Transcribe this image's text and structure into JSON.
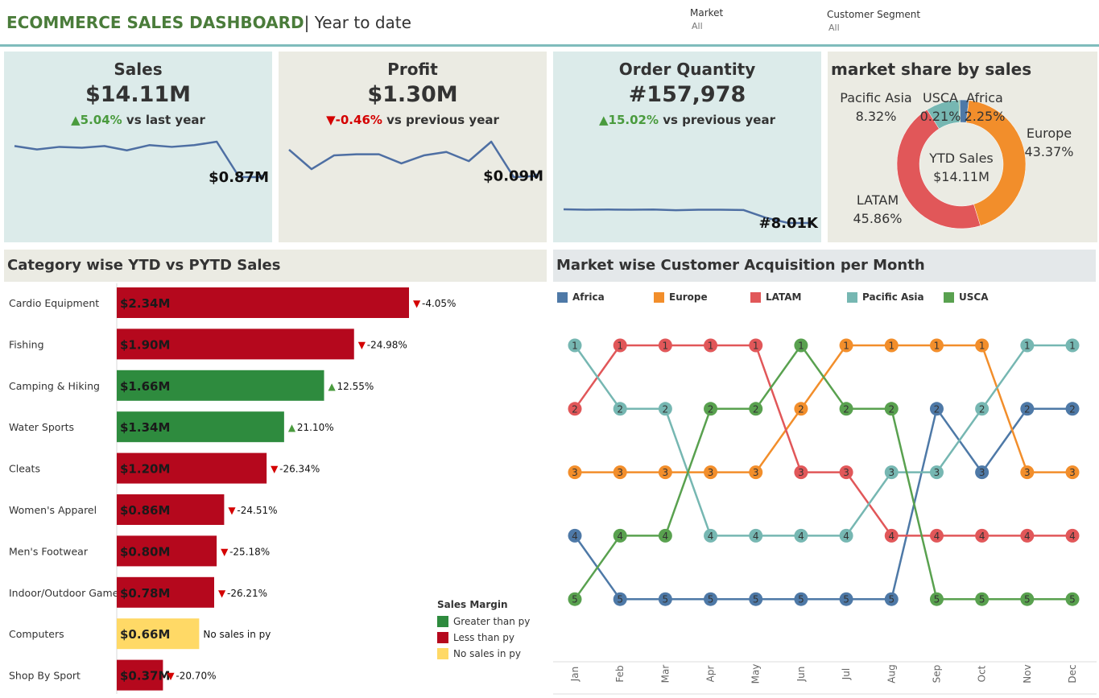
{
  "header": {
    "title_main": "ECOMMERCE SALES DASHBOARD",
    "title_sub": "| Year to date",
    "filters": [
      {
        "label": "Market",
        "value": "All"
      },
      {
        "label": "Customer Segment",
        "value": "All"
      }
    ]
  },
  "kpis": [
    {
      "title": "Sales",
      "value": "$14.11M",
      "arrow": "▲",
      "change": "5.04%",
      "change_suffix": " vs last year",
      "trend": "up",
      "end_label": "$0.87M",
      "bg": "#dcebea",
      "sparkline": [
        1.23,
        1.19,
        1.22,
        1.21,
        1.23,
        1.18,
        1.24,
        1.22,
        1.24,
        1.28,
        0.87,
        0.87
      ]
    },
    {
      "title": "Profit",
      "value": "$1.30M",
      "arrow": "▼",
      "change": "-0.46%",
      "change_suffix": " vs previous year",
      "trend": "down",
      "end_label": "$0.09M",
      "bg": "#ebebe3",
      "sparkline": [
        0.12,
        0.103,
        0.115,
        0.116,
        0.116,
        0.108,
        0.115,
        0.118,
        0.11,
        0.127,
        0.096,
        0.097
      ]
    },
    {
      "title": "Order Quantity",
      "value": "#157,978",
      "arrow": "▲",
      "change": "15.02%",
      "change_suffix": " vs previous year",
      "trend": "up",
      "end_label": "#8.01K",
      "bg": "#dcebea",
      "sparkline": [
        14.2,
        14.0,
        14.1,
        14.0,
        14.1,
        13.8,
        14.0,
        14.0,
        13.9,
        10.4,
        8.01,
        8.01
      ]
    }
  ],
  "market_share": {
    "title": "market share by sales",
    "center_title": "YTD Sales",
    "center_value": "$14.11M",
    "slices": [
      {
        "name": "Africa",
        "pct": 2.25,
        "label": "2.25%",
        "color": "#4e79a7"
      },
      {
        "name": "Europe",
        "pct": 43.37,
        "label": "43.37%",
        "color": "#f28e2b"
      },
      {
        "name": "LATAM",
        "pct": 45.86,
        "label": "45.86%",
        "color": "#e15759"
      },
      {
        "name": "Pacific Asia",
        "pct": 8.32,
        "label": "8.32%",
        "color": "#76b7b2"
      },
      {
        "name": "USCA",
        "pct": 0.21,
        "label": "0.21%",
        "color": "#59a14f"
      }
    ]
  },
  "category": {
    "title": "Category wise YTD vs PYTD Sales",
    "legend_title": "Sales Margin",
    "legend": [
      {
        "label": "Greater than py",
        "color": "#2e8b3e"
      },
      {
        "label": "Less than py",
        "color": "#b5081d"
      },
      {
        "label": "No sales in py",
        "color": "#ffd966"
      }
    ],
    "rows": [
      {
        "name": "Cardio Equipment",
        "value": 2.34,
        "label": "$2.34M",
        "status": "less",
        "arrow": "▼",
        "change": "-4.05%"
      },
      {
        "name": "Fishing",
        "value": 1.9,
        "label": "$1.90M",
        "status": "less",
        "arrow": "▼",
        "change": "-24.98%"
      },
      {
        "name": "Camping & Hiking",
        "value": 1.66,
        "label": "$1.66M",
        "status": "greater",
        "arrow": "▲",
        "change": "12.55%"
      },
      {
        "name": "Water Sports",
        "value": 1.34,
        "label": "$1.34M",
        "status": "greater",
        "arrow": "▲",
        "change": "21.10%"
      },
      {
        "name": "Cleats",
        "value": 1.2,
        "label": "$1.20M",
        "status": "less",
        "arrow": "▼",
        "change": "-26.34%"
      },
      {
        "name": "Women's Apparel",
        "value": 0.86,
        "label": "$0.86M",
        "status": "less",
        "arrow": "▼",
        "change": "-24.51%"
      },
      {
        "name": "Men's Footwear",
        "value": 0.8,
        "label": "$0.80M",
        "status": "less",
        "arrow": "▼",
        "change": "-25.18%"
      },
      {
        "name": "Indoor/Outdoor Games",
        "value": 0.78,
        "label": "$0.78M",
        "status": "less",
        "arrow": "▼",
        "change": "-26.21%"
      },
      {
        "name": "Computers",
        "value": 0.66,
        "label": "$0.66M",
        "status": "none",
        "arrow": "",
        "change": "No sales in py"
      },
      {
        "name": "Shop By Sport",
        "value": 0.37,
        "label": "$0.37M",
        "status": "less",
        "arrow": "▼",
        "change": "-20.70%"
      }
    ]
  },
  "chart_data": {
    "type": "line",
    "title": "Market wise Customer Acquisition per Month",
    "x": [
      "Jan",
      "Feb",
      "Mar",
      "Apr",
      "May",
      "Jun",
      "Jul",
      "Aug",
      "Sep",
      "Oct",
      "Nov",
      "Dec"
    ],
    "y_inverted": true,
    "ylim": [
      1,
      5
    ],
    "series": [
      {
        "name": "Africa",
        "color": "#4e79a7",
        "values": [
          4,
          5,
          5,
          5,
          5,
          5,
          5,
          5,
          2,
          3,
          2,
          2
        ]
      },
      {
        "name": "Europe",
        "color": "#f28e2b",
        "values": [
          3,
          3,
          3,
          3,
          3,
          2,
          1,
          1,
          1,
          1,
          3,
          3
        ]
      },
      {
        "name": "LATAM",
        "color": "#e15759",
        "values": [
          2,
          1,
          1,
          1,
          1,
          3,
          3,
          4,
          4,
          4,
          4,
          4
        ]
      },
      {
        "name": "Pacific Asia",
        "color": "#76b7b2",
        "values": [
          1,
          2,
          2,
          4,
          4,
          4,
          4,
          3,
          3,
          2,
          1,
          1
        ]
      },
      {
        "name": "USCA",
        "color": "#59a14f",
        "values": [
          5,
          4,
          4,
          2,
          2,
          1,
          2,
          2,
          5,
          5,
          5,
          5
        ]
      }
    ]
  }
}
